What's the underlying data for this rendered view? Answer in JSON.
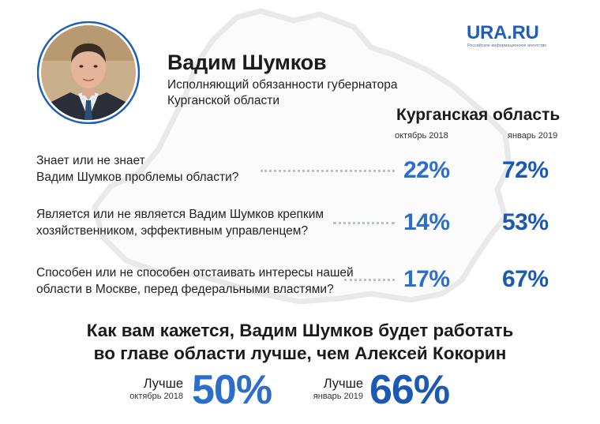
{
  "logo": {
    "name": "URA.RU",
    "tagline": "Российское информационное агентство"
  },
  "person": {
    "name": "Вадим Шумков",
    "role_line1": "Исполняющий обязанности губернатора",
    "role_line2": "Курганской области"
  },
  "survey": {
    "region_title": "Курганская область",
    "col1_label": "октябрь 2018",
    "col2_label": "январь 2019",
    "questions": [
      {
        "line1": "Знает или не знает",
        "line2": "Вадим Шумков проблемы области?",
        "v1": "22%",
        "v2": "72%"
      },
      {
        "line1": "Является или не является Вадим Шумков крепким",
        "line2": "хозяйственником, эффективным управленцем?",
        "v1": "14%",
        "v2": "53%"
      },
      {
        "line1": "Способен или не способен отстаивать интересы нашей",
        "line2": "области в Москве, перед федеральными властями?",
        "v1": "17%",
        "v2": "67%"
      }
    ]
  },
  "bottom": {
    "title_line1": "Как вам кажется, Вадим Шумков будет работать",
    "title_line2": "во главе области лучше, чем Алексей Кокорин",
    "left": {
      "label": "Лучше",
      "date": "октябрь 2018",
      "value": "50%"
    },
    "right": {
      "label": "Лучше",
      "date": "январь 2019",
      "value": "66%"
    }
  },
  "colors": {
    "accent": "#2b6fcb",
    "accent_dark": "#1c59b3",
    "map_outline": "#ececec"
  },
  "chart_data": {
    "type": "table",
    "title": "Курганская область",
    "columns": [
      "октябрь 2018",
      "январь 2019"
    ],
    "rows": [
      {
        "question": "Знает или не знает Вадим Шумков проблемы области?",
        "values": [
          22,
          72
        ]
      },
      {
        "question": "Является или не является Вадим Шумков крепким хозяйственником, эффективным управленцем?",
        "values": [
          14,
          53
        ]
      },
      {
        "question": "Способен или не способен отстаивать интересы нашей области в Москве, перед федеральными властями?",
        "values": [
          17,
          67
        ]
      }
    ],
    "summary": {
      "question": "Как вам кажется, Вадим Шумков будет работать во главе области лучше, чем Алексей Кокорин",
      "answer": "Лучше",
      "values": [
        {
          "date": "октябрь 2018",
          "value": 50
        },
        {
          "date": "январь 2019",
          "value": 66
        }
      ]
    }
  }
}
